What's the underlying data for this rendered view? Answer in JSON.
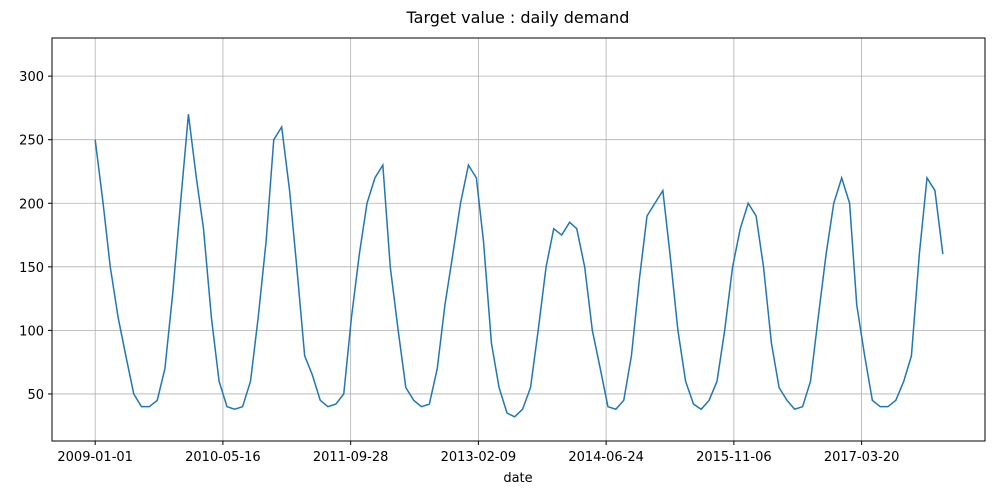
{
  "chart_data": {
    "type": "line",
    "title": "Target value : daily demand",
    "xlabel": "date",
    "x": [
      "2009-01-01",
      "2009-02-01",
      "2009-03-01",
      "2009-04-01",
      "2009-05-01",
      "2009-06-01",
      "2009-07-01",
      "2009-08-01",
      "2009-09-01",
      "2009-10-01",
      "2009-11-01",
      "2009-12-01",
      "2010-01-01",
      "2010-02-01",
      "2010-03-01",
      "2010-04-01",
      "2010-05-01",
      "2010-06-01",
      "2010-07-01",
      "2010-08-01",
      "2010-09-01",
      "2010-10-01",
      "2010-11-01",
      "2010-12-01",
      "2011-01-01",
      "2011-02-01",
      "2011-03-01",
      "2011-04-01",
      "2011-05-01",
      "2011-06-01",
      "2011-07-01",
      "2011-08-01",
      "2011-09-01",
      "2011-10-01",
      "2011-11-01",
      "2011-12-01",
      "2012-01-01",
      "2012-02-01",
      "2012-03-01",
      "2012-04-01",
      "2012-05-01",
      "2012-06-01",
      "2012-07-01",
      "2012-08-01",
      "2012-09-01",
      "2012-10-01",
      "2012-11-01",
      "2012-12-01",
      "2013-01-01",
      "2013-02-01",
      "2013-03-01",
      "2013-04-01",
      "2013-05-01",
      "2013-06-01",
      "2013-07-01",
      "2013-08-01",
      "2013-09-01",
      "2013-10-01",
      "2013-11-01",
      "2013-12-01",
      "2014-01-01",
      "2014-02-01",
      "2014-03-01",
      "2014-04-01",
      "2014-05-01",
      "2014-06-01",
      "2014-07-01",
      "2014-08-01",
      "2014-09-01",
      "2014-10-01",
      "2014-11-01",
      "2014-12-01",
      "2015-01-01",
      "2015-02-01",
      "2015-03-01",
      "2015-04-01",
      "2015-05-01",
      "2015-06-01",
      "2015-07-01",
      "2015-08-01",
      "2015-09-01",
      "2015-10-01",
      "2015-11-01",
      "2015-12-01",
      "2016-01-01",
      "2016-02-01",
      "2016-03-01",
      "2016-04-01",
      "2016-05-01",
      "2016-06-01",
      "2016-07-01",
      "2016-08-01",
      "2016-09-01",
      "2016-10-01",
      "2016-11-01",
      "2016-12-01",
      "2017-01-01",
      "2017-02-01",
      "2017-03-01",
      "2017-04-01",
      "2017-05-01",
      "2017-06-01",
      "2017-07-01",
      "2017-08-01",
      "2017-09-01",
      "2017-10-01",
      "2017-11-01",
      "2017-12-01",
      "2018-01-01",
      "2018-02-01"
    ],
    "series": [
      {
        "color": "#1f77b4",
        "values": [
          250,
          200,
          150,
          110,
          80,
          50,
          40,
          40,
          45,
          70,
          130,
          200,
          270,
          220,
          180,
          110,
          60,
          40,
          38,
          40,
          60,
          110,
          170,
          250,
          260,
          210,
          150,
          80,
          65,
          45,
          40,
          42,
          50,
          110,
          160,
          200,
          220,
          230,
          150,
          100,
          55,
          45,
          40,
          42,
          70,
          120,
          160,
          200,
          230,
          220,
          170,
          90,
          55,
          35,
          32,
          38,
          55,
          100,
          150,
          180,
          175,
          185,
          180,
          150,
          100,
          70,
          40,
          38,
          45,
          80,
          140,
          190,
          200,
          210,
          160,
          100,
          60,
          42,
          38,
          45,
          60,
          100,
          150,
          180,
          200,
          190,
          150,
          90,
          55,
          45,
          38,
          40,
          60,
          110,
          160,
          200,
          220,
          200,
          120,
          80,
          45,
          40,
          40,
          45,
          60,
          80,
          160,
          220,
          210,
          160
        ]
      }
    ],
    "xlim": [
      "2008-07-16",
      "2018-07-16"
    ],
    "xticks": [
      "2009-01-01",
      "2010-05-16",
      "2011-09-28",
      "2013-02-09",
      "2014-06-24",
      "2015-11-06",
      "2017-03-20"
    ],
    "ylim": [
      13,
      330
    ],
    "yticks": [
      50,
      100,
      150,
      200,
      250,
      300
    ],
    "grid": true
  }
}
